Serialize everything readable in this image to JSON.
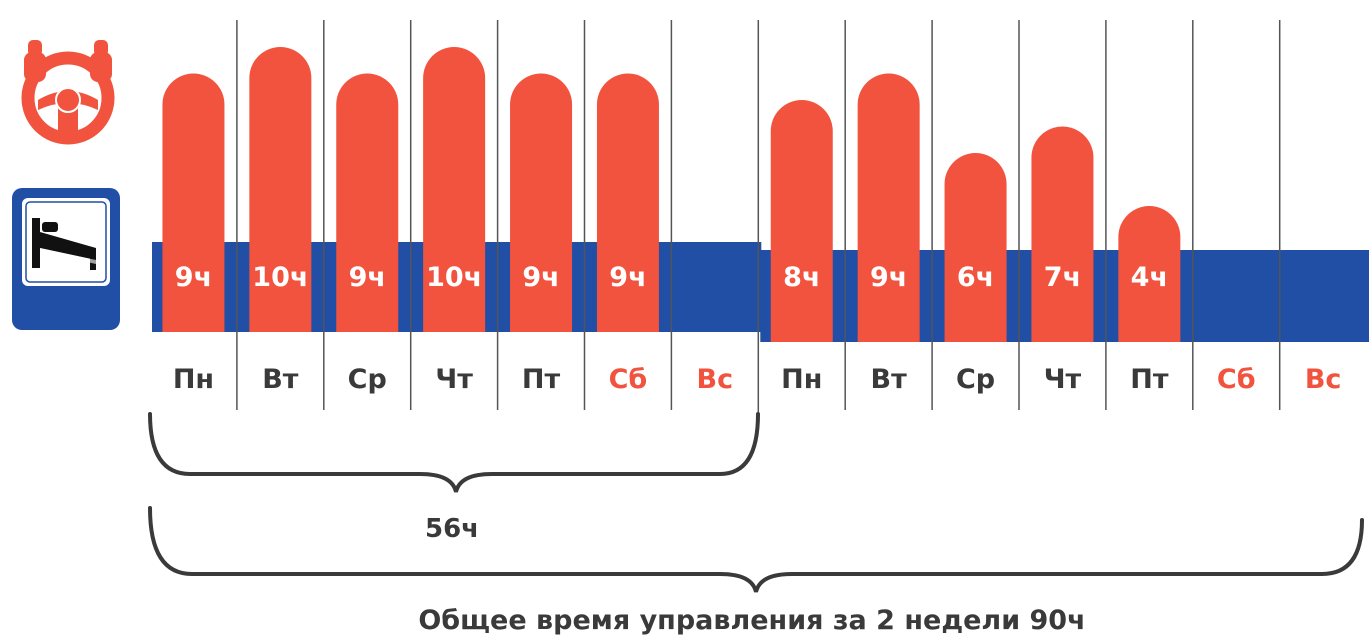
{
  "colors": {
    "drive": "#f1533e",
    "rest": "#214fa6",
    "weekday_text": "#3a3a3a",
    "weekend_text": "#f1533e",
    "divider": "#555555",
    "bracket": "#3a3a3a"
  },
  "icons": {
    "drive": "steering-wheel-icon",
    "rest": "bed-icon"
  },
  "chart_data": {
    "type": "bar",
    "categories": [
      "Пн",
      "Вт",
      "Ср",
      "Чт",
      "Пт",
      "Сб",
      "Вс",
      "Пн",
      "Вт",
      "Ср",
      "Чт",
      "Пт",
      "Сб",
      "Вс"
    ],
    "weekend_flags": [
      false,
      false,
      false,
      false,
      false,
      true,
      true,
      false,
      false,
      false,
      false,
      false,
      true,
      true
    ],
    "values": [
      9,
      10,
      9,
      10,
      9,
      9,
      null,
      8,
      9,
      6,
      7,
      4,
      null,
      null
    ],
    "value_labels": [
      "9ч",
      "10ч",
      "9ч",
      "10ч",
      "9ч",
      "9ч",
      "",
      "8ч",
      "9ч",
      "6ч",
      "7ч",
      "4ч",
      "",
      ""
    ],
    "week1_total": "56ч",
    "caption": "Общее время управления за 2 недели 90ч"
  }
}
